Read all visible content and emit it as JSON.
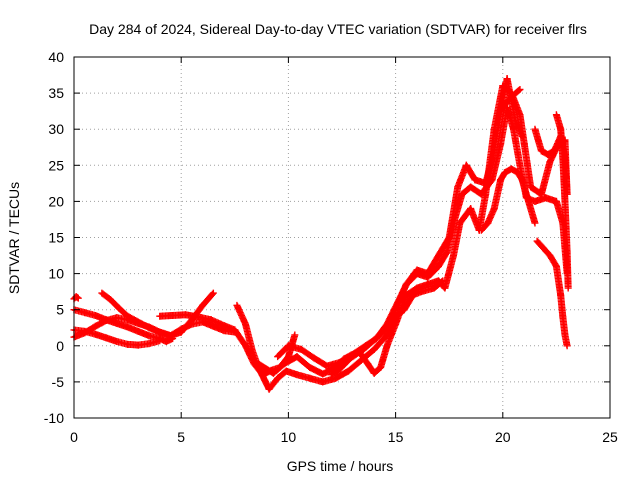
{
  "chart_data": {
    "type": "scatter",
    "title": "Day 284 of 2024, Sidereal Day-to-day VTEC variation (SDTVAR) for receiver flrs",
    "xlabel": "GPS time / hours",
    "ylabel": "SDTVAR / TECUs",
    "xlim": [
      0,
      25
    ],
    "ylim": [
      -10,
      40
    ],
    "xticks": [
      0,
      5,
      10,
      15,
      20,
      25
    ],
    "yticks": [
      -10,
      -5,
      0,
      5,
      10,
      15,
      20,
      25,
      30,
      35,
      40
    ],
    "xtick_labels": [
      "0",
      "5",
      "10",
      "15",
      "20",
      "25"
    ],
    "ytick_labels": [
      "-10",
      "-5",
      "0",
      "5",
      "10",
      "15",
      "20",
      "25",
      "30",
      "35",
      "40"
    ],
    "grid": true,
    "marker": "plus",
    "marker_color": "#ff0000",
    "series": [
      {
        "points": [
          [
            0.0,
            6.5
          ],
          [
            0.1,
            6.8
          ],
          [
            0.2,
            6.6
          ]
        ]
      },
      {
        "points": [
          [
            0.0,
            5.0
          ],
          [
            0.5,
            4.6
          ],
          [
            1.0,
            4.2
          ],
          [
            1.5,
            3.6
          ],
          [
            2.0,
            3.1
          ],
          [
            2.5,
            2.6
          ],
          [
            3.0,
            2.0
          ],
          [
            3.5,
            1.4
          ],
          [
            4.0,
            1.0
          ],
          [
            4.3,
            0.6
          ],
          [
            4.6,
            1.0
          ]
        ]
      },
      {
        "points": [
          [
            0.0,
            2.2
          ],
          [
            0.5,
            2.0
          ],
          [
            1.0,
            1.6
          ],
          [
            1.5,
            1.1
          ],
          [
            2.0,
            0.6
          ],
          [
            2.5,
            0.2
          ],
          [
            3.0,
            0.1
          ],
          [
            3.5,
            0.3
          ],
          [
            4.0,
            0.7
          ]
        ]
      },
      {
        "points": [
          [
            0.0,
            1.2
          ],
          [
            0.5,
            1.8
          ],
          [
            1.0,
            2.7
          ],
          [
            1.5,
            3.5
          ],
          [
            2.0,
            3.9
          ],
          [
            2.5,
            3.6
          ],
          [
            3.0,
            3.1
          ],
          [
            3.5,
            2.6
          ],
          [
            4.0,
            1.9
          ],
          [
            4.5,
            1.4
          ],
          [
            5.0,
            2.3
          ],
          [
            5.5,
            3.0
          ],
          [
            6.0,
            3.3
          ],
          [
            6.5,
            2.7
          ],
          [
            7.0,
            2.1
          ],
          [
            7.5,
            1.9
          ]
        ]
      },
      {
        "points": [
          [
            1.3,
            7.3
          ],
          [
            1.7,
            6.4
          ],
          [
            2.1,
            5.2
          ],
          [
            2.5,
            4.1
          ],
          [
            3.0,
            3.3
          ],
          [
            3.5,
            2.5
          ],
          [
            4.0,
            1.9
          ],
          [
            4.5,
            1.4
          ],
          [
            5.0,
            1.9
          ],
          [
            5.5,
            3.6
          ],
          [
            6.0,
            5.6
          ],
          [
            6.5,
            7.3
          ]
        ]
      },
      {
        "points": [
          [
            4.0,
            4.1
          ],
          [
            4.6,
            4.2
          ],
          [
            5.2,
            4.3
          ],
          [
            5.8,
            4.0
          ],
          [
            6.4,
            3.6
          ],
          [
            7.0,
            2.8
          ],
          [
            7.5,
            2.2
          ],
          [
            8.0,
            0.0
          ],
          [
            8.4,
            -2.5
          ],
          [
            8.8,
            -4.0
          ],
          [
            9.2,
            -3.4
          ],
          [
            9.6,
            -3.0
          ],
          [
            10.0,
            -1.5
          ],
          [
            10.3,
            1.5
          ]
        ]
      },
      {
        "points": [
          [
            7.6,
            5.6
          ],
          [
            8.0,
            3.0
          ],
          [
            8.3,
            -0.5
          ],
          [
            8.6,
            -3.0
          ],
          [
            8.9,
            -4.8
          ],
          [
            9.1,
            -6.0
          ],
          [
            9.5,
            -4.5
          ],
          [
            9.9,
            -3.5
          ],
          [
            10.4,
            -4.0
          ],
          [
            11.0,
            -4.5
          ],
          [
            11.6,
            -5.0
          ],
          [
            12.2,
            -4.5
          ],
          [
            12.8,
            -3.5
          ],
          [
            13.4,
            -2.0
          ],
          [
            14.0,
            -0.5
          ],
          [
            14.6,
            1.5
          ],
          [
            15.0,
            4.0
          ],
          [
            15.4,
            5.0
          ],
          [
            15.8,
            7.0
          ],
          [
            16.2,
            7.5
          ],
          [
            16.8,
            8.0
          ],
          [
            17.2,
            9.0
          ]
        ]
      },
      {
        "points": [
          [
            8.6,
            -2.5
          ],
          [
            9.3,
            -3.8
          ],
          [
            9.8,
            -2.5
          ],
          [
            10.4,
            -1.5
          ],
          [
            11.0,
            -3.0
          ],
          [
            11.6,
            -3.9
          ],
          [
            12.1,
            -3.2
          ],
          [
            12.6,
            -1.8
          ],
          [
            13.1,
            -1.0
          ],
          [
            13.6,
            0.0
          ],
          [
            14.1,
            1.0
          ],
          [
            14.6,
            3.0
          ],
          [
            15.1,
            6.0
          ],
          [
            15.5,
            8.5
          ],
          [
            16.0,
            10.0
          ],
          [
            16.5,
            9.5
          ],
          [
            17.0,
            11.0
          ],
          [
            17.4,
            13.0
          ],
          [
            17.8,
            18.0
          ],
          [
            18.1,
            21.0
          ],
          [
            18.5,
            22.0
          ],
          [
            19.0,
            21.0
          ],
          [
            19.5,
            23.0
          ],
          [
            19.9,
            28.0
          ],
          [
            20.2,
            33.0
          ],
          [
            20.5,
            30.0
          ],
          [
            20.8,
            25.0
          ],
          [
            21.1,
            20.5
          ],
          [
            21.5,
            20.0
          ],
          [
            22.0,
            20.5
          ],
          [
            22.5,
            20.0
          ],
          [
            22.8,
            17.0
          ],
          [
            23.0,
            10.0
          ]
        ]
      },
      {
        "points": [
          [
            9.5,
            -1.5
          ],
          [
            10.0,
            0.0
          ],
          [
            10.6,
            -0.5
          ],
          [
            11.2,
            -1.7
          ],
          [
            11.8,
            -2.8
          ],
          [
            12.4,
            -2.3
          ],
          [
            13.0,
            -1.5
          ],
          [
            13.5,
            -0.5
          ],
          [
            14.0,
            0.8
          ],
          [
            14.5,
            2.2
          ],
          [
            15.0,
            5.0
          ],
          [
            15.5,
            8.5
          ],
          [
            16.0,
            10.5
          ],
          [
            16.5,
            10.0
          ],
          [
            17.0,
            12.5
          ],
          [
            17.5,
            15.0
          ],
          [
            17.9,
            22.0
          ],
          [
            18.3,
            25.0
          ],
          [
            18.7,
            23.0
          ],
          [
            19.2,
            22.5
          ],
          [
            19.6,
            27.0
          ],
          [
            19.9,
            32.0
          ],
          [
            20.2,
            37.0
          ],
          [
            20.4,
            34.0
          ],
          [
            20.6,
            31.0
          ],
          [
            20.9,
            29.0
          ]
        ]
      },
      {
        "points": [
          [
            12.0,
            -4.0
          ],
          [
            12.3,
            -3.5
          ],
          [
            12.6,
            -2.6
          ],
          [
            13.0,
            -1.4
          ],
          [
            13.3,
            -0.8
          ],
          [
            13.7,
            -2.5
          ],
          [
            14.0,
            -3.8
          ],
          [
            14.3,
            -3.0
          ],
          [
            14.6,
            0.0
          ],
          [
            15.0,
            3.0
          ],
          [
            15.5,
            7.0
          ],
          [
            16.0,
            8.0
          ],
          [
            16.5,
            8.5
          ],
          [
            17.0,
            9.0
          ],
          [
            17.3,
            8.0
          ],
          [
            17.7,
            12.5
          ],
          [
            18.0,
            17.0
          ],
          [
            18.5,
            19.0
          ],
          [
            18.9,
            16.0
          ],
          [
            19.2,
            21.0
          ],
          [
            19.6,
            30.0
          ],
          [
            20.0,
            36.0
          ],
          [
            20.4,
            35.0
          ],
          [
            20.8,
            32.0
          ],
          [
            21.0,
            28.0
          ],
          [
            21.3,
            22.0
          ],
          [
            21.8,
            21.0
          ],
          [
            22.2,
            25.5
          ],
          [
            22.6,
            28.0
          ],
          [
            22.9,
            28.5
          ],
          [
            23.0,
            21.0
          ]
        ]
      },
      {
        "points": [
          [
            19.0,
            16.0
          ],
          [
            19.3,
            17.0
          ],
          [
            19.6,
            19.0
          ],
          [
            19.9,
            23.0
          ],
          [
            20.1,
            24.0
          ],
          [
            20.4,
            24.5
          ],
          [
            20.7,
            24.0
          ],
          [
            20.9,
            23.0
          ],
          [
            21.2,
            20.0
          ],
          [
            21.5,
            17.0
          ]
        ]
      },
      {
        "points": [
          [
            20.0,
            33.0
          ],
          [
            20.4,
            34.5
          ],
          [
            20.8,
            35.5
          ]
        ]
      },
      {
        "points": [
          [
            21.5,
            30.0
          ],
          [
            21.8,
            27.0
          ],
          [
            22.1,
            26.5
          ],
          [
            22.4,
            27.0
          ],
          [
            22.7,
            29.0
          ],
          [
            22.9,
            26.0
          ],
          [
            23.0,
            21.0
          ]
        ]
      },
      {
        "points": [
          [
            22.5,
            32.0
          ],
          [
            22.7,
            30.0
          ],
          [
            22.8,
            26.0
          ],
          [
            22.9,
            20.0
          ],
          [
            23.0,
            13.0
          ],
          [
            23.05,
            8.0
          ]
        ]
      },
      {
        "points": [
          [
            21.6,
            14.5
          ],
          [
            21.9,
            13.5
          ],
          [
            22.2,
            12.5
          ],
          [
            22.5,
            11.0
          ],
          [
            22.7,
            7.0
          ],
          [
            22.8,
            4.0
          ],
          [
            22.9,
            1.5
          ],
          [
            23.0,
            0.0
          ]
        ]
      }
    ]
  }
}
